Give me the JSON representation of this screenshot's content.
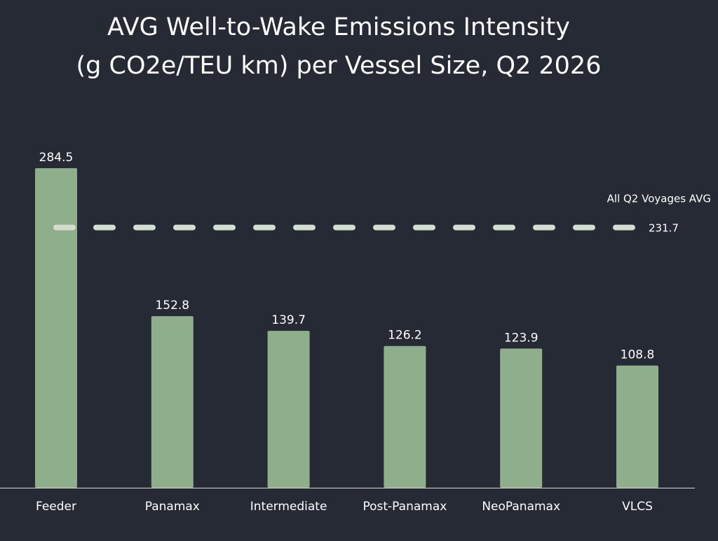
{
  "chart_data": {
    "type": "bar",
    "title_lines": [
      "AVG Well-to-Wake Emissions Intensity",
      "(g CO2e/TEU km) per Vessel Size, Q2 2026"
    ],
    "categories": [
      "Feeder",
      "Panamax",
      "Intermediate",
      "Post-Panamax",
      "NeoPanamax",
      "VLCS"
    ],
    "values": [
      284.5,
      152.8,
      139.7,
      126.2,
      123.9,
      108.8
    ],
    "value_labels": [
      "284.5",
      "152.8",
      "139.7",
      "126.2",
      "123.9",
      "108.8"
    ],
    "reference_line": {
      "label": "All Q2 Voyages AVG",
      "value": 231.7,
      "value_label": "231.7",
      "style": "dashed"
    },
    "ylim": [
      0,
      284.5
    ],
    "grid": false,
    "legend": "none",
    "colors": {
      "background": "#252a35",
      "bar": "#8fae8b",
      "reference_line": "#d3ddd0",
      "axis": "#d9d9d9",
      "text": "#ffffff"
    }
  }
}
